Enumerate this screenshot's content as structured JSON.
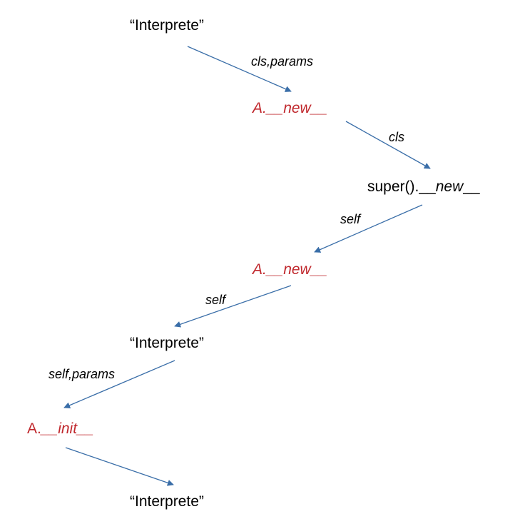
{
  "colors": {
    "arrow": "#3a6ea8",
    "method_red": "#c0282d",
    "text": "#000000"
  },
  "nodes": {
    "interpreter_1": "“Interprete”",
    "a_new_1": "A.__new__",
    "super_new_prefix": "super().__",
    "super_new_italic": "new",
    "super_new_suffix": "__",
    "a_new_2": "A.__new__",
    "interpreter_2": "“Interprete”",
    "a_init": "A.__init__",
    "interpreter_3": "“Interprete”"
  },
  "edges": {
    "e1_label": "cls,params",
    "e2_label": "cls",
    "e3_label": "self",
    "e4_label": "self",
    "e5_label": "self,params"
  }
}
